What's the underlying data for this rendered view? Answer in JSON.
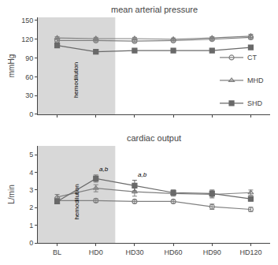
{
  "chart_data": [
    {
      "type": "line",
      "title": "mean arterial pressure",
      "ylabel": "mmHg",
      "categories": [
        "BL",
        "HD0",
        "HD30",
        "HD60",
        "HD90",
        "HD120"
      ],
      "series": [
        {
          "name": "CT",
          "color": "gray",
          "marker": "circle-open",
          "values": [
            118,
            118,
            117,
            118,
            120,
            123
          ],
          "error": [
            2,
            2,
            2,
            2,
            2,
            3
          ]
        },
        {
          "name": "MHD",
          "color": "gray",
          "marker": "triangle-up-open",
          "values": [
            122,
            121,
            121,
            120,
            122,
            125
          ],
          "error": [
            2,
            2,
            2,
            2,
            2,
            3
          ]
        },
        {
          "name": "SHD",
          "color": "dimgray",
          "marker": "square",
          "values": [
            110,
            100,
            102,
            102,
            102,
            107
          ],
          "error": [
            2,
            2,
            2,
            2,
            2,
            2
          ]
        }
      ],
      "ylim": [
        0,
        155
      ],
      "yticks": [
        0,
        30,
        60,
        90,
        120,
        150
      ],
      "tick_labels": "y",
      "grid": false,
      "legend": "right",
      "annotations": [
        {
          "text": "hemodilution",
          "span": [
            "BL",
            "HD0"
          ],
          "color": "#d8d8d8"
        }
      ]
    },
    {
      "type": "line",
      "title": "cardiac output",
      "ylabel": "L/min",
      "categories": [
        "BL",
        "HD0",
        "HD30",
        "HD60",
        "HD90",
        "HD120"
      ],
      "series": [
        {
          "name": "CT",
          "color": "gray",
          "marker": "circle-open",
          "values": [
            2.4,
            2.4,
            2.35,
            2.35,
            2.05,
            1.9
          ],
          "error": [
            0.1,
            0.1,
            0.1,
            0.1,
            0.15,
            0.12
          ]
        },
        {
          "name": "MHD",
          "color": "gray",
          "marker": "triangle-up-open",
          "values": [
            2.6,
            3.1,
            2.9,
            2.8,
            2.75,
            2.85
          ],
          "error": [
            0.15,
            0.2,
            0.25,
            0.15,
            0.2,
            0.15
          ]
        },
        {
          "name": "SHD",
          "color": "dimgray",
          "marker": "square",
          "values": [
            2.35,
            3.65,
            3.25,
            2.85,
            2.8,
            2.5
          ],
          "error": [
            0.1,
            0.2,
            0.3,
            0.15,
            0.2,
            0.12
          ]
        }
      ],
      "ylim": [
        0,
        5.5
      ],
      "yticks": [
        0,
        1,
        2,
        3,
        4,
        5
      ],
      "grid": false,
      "legend": false,
      "annotations": [
        {
          "text": "hemodilution",
          "span": [
            "BL",
            "HD0"
          ],
          "color": "#d8d8d8"
        },
        {
          "text": "a,b",
          "category": "HD0"
        },
        {
          "text": "a,b",
          "category": "HD30"
        }
      ]
    }
  ]
}
